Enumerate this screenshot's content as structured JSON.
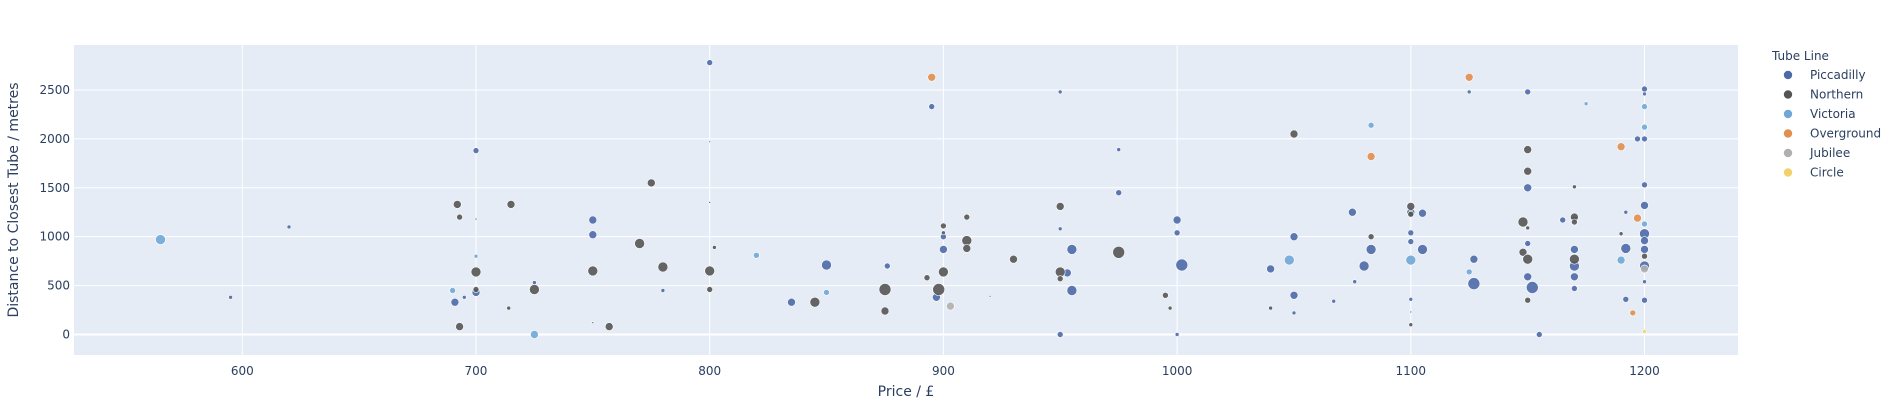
{
  "chart_data": {
    "type": "scatter",
    "xlabel": "Price / £",
    "ylabel": "Distance to Closest Tube / metres",
    "xlim": [
      528,
      1240
    ],
    "ylim": [
      -210,
      2960
    ],
    "xticks": [
      600,
      700,
      800,
      900,
      1000,
      1100,
      1200
    ],
    "yticks": [
      0,
      500,
      1000,
      1500,
      2000,
      2500
    ],
    "grid": true,
    "legend_title": "Tube Line",
    "legend_position": "right",
    "series": [
      {
        "name": "Piccadilly",
        "color": "#4c6aa8",
        "points": [
          [
            595,
            380,
            2
          ],
          [
            620,
            1100,
            2
          ],
          [
            691,
            330,
            4
          ],
          [
            695,
            380,
            2
          ],
          [
            700,
            1880,
            3
          ],
          [
            700,
            430,
            4
          ],
          [
            725,
            530,
            2
          ],
          [
            750,
            1170,
            4
          ],
          [
            750,
            1020,
            4
          ],
          [
            780,
            450,
            2
          ],
          [
            800,
            2780,
            3
          ],
          [
            800,
            1970,
            1
          ],
          [
            835,
            330,
            4
          ],
          [
            850,
            710,
            5
          ],
          [
            876,
            700,
            3
          ],
          [
            895,
            2330,
            3
          ],
          [
            897,
            380,
            4
          ],
          [
            900,
            1000,
            3
          ],
          [
            900,
            870,
            4
          ],
          [
            920,
            390,
            1
          ],
          [
            950,
            2480,
            2
          ],
          [
            950,
            1080,
            2
          ],
          [
            950,
            0,
            3
          ],
          [
            953,
            630,
            4
          ],
          [
            955,
            870,
            5
          ],
          [
            955,
            450,
            5
          ],
          [
            975,
            1890,
            2
          ],
          [
            975,
            1450,
            3
          ],
          [
            1000,
            1170,
            4
          ],
          [
            1000,
            1040,
            3
          ],
          [
            1000,
            0,
            2
          ],
          [
            1002,
            710,
            6
          ],
          [
            1040,
            670,
            4
          ],
          [
            1050,
            1000,
            4
          ],
          [
            1050,
            400,
            4
          ],
          [
            1050,
            220,
            2
          ],
          [
            1067,
            340,
            2
          ],
          [
            1075,
            1250,
            4
          ],
          [
            1076,
            540,
            2
          ],
          [
            1080,
            700,
            5
          ],
          [
            1083,
            870,
            5
          ],
          [
            1100,
            1250,
            4
          ],
          [
            1100,
            1040,
            3
          ],
          [
            1100,
            950,
            3
          ],
          [
            1100,
            360,
            2
          ],
          [
            1100,
            230,
            1
          ],
          [
            1105,
            1240,
            4
          ],
          [
            1105,
            870,
            5
          ],
          [
            1125,
            2480,
            2
          ],
          [
            1127,
            770,
            4
          ],
          [
            1127,
            520,
            6
          ],
          [
            1150,
            2480,
            3
          ],
          [
            1150,
            1500,
            4
          ],
          [
            1150,
            930,
            3
          ],
          [
            1150,
            590,
            4
          ],
          [
            1152,
            480,
            6
          ],
          [
            1155,
            0,
            3
          ],
          [
            1165,
            1170,
            3
          ],
          [
            1170,
            1180,
            3
          ],
          [
            1170,
            870,
            4
          ],
          [
            1170,
            700,
            5
          ],
          [
            1170,
            590,
            4
          ],
          [
            1170,
            470,
            3
          ],
          [
            1192,
            1250,
            2
          ],
          [
            1192,
            880,
            5
          ],
          [
            1192,
            360,
            3
          ],
          [
            1197,
            2000,
            3
          ],
          [
            1200,
            2510,
            3
          ],
          [
            1200,
            2460,
            2
          ],
          [
            1200,
            2000,
            3
          ],
          [
            1200,
            1530,
            3
          ],
          [
            1200,
            1320,
            4
          ],
          [
            1200,
            1030,
            5
          ],
          [
            1200,
            960,
            4
          ],
          [
            1200,
            870,
            4
          ],
          [
            1200,
            700,
            5
          ],
          [
            1200,
            540,
            2
          ],
          [
            1200,
            350,
            3
          ]
        ]
      },
      {
        "name": "Northern",
        "color": "#555555",
        "points": [
          [
            692,
            1330,
            4
          ],
          [
            693,
            1200,
            3
          ],
          [
            693,
            80,
            4
          ],
          [
            700,
            1180,
            1
          ],
          [
            700,
            640,
            5
          ],
          [
            700,
            460,
            3
          ],
          [
            714,
            270,
            2
          ],
          [
            715,
            1330,
            4
          ],
          [
            725,
            460,
            5
          ],
          [
            750,
            650,
            5
          ],
          [
            750,
            120,
            1
          ],
          [
            757,
            80,
            4
          ],
          [
            770,
            930,
            5
          ],
          [
            775,
            1550,
            4
          ],
          [
            780,
            690,
            5
          ],
          [
            800,
            650,
            5
          ],
          [
            800,
            460,
            3
          ],
          [
            800,
            1350,
            1
          ],
          [
            802,
            890,
            2
          ],
          [
            845,
            330,
            5
          ],
          [
            875,
            460,
            6
          ],
          [
            875,
            240,
            4
          ],
          [
            893,
            580,
            3
          ],
          [
            898,
            460,
            6
          ],
          [
            900,
            1110,
            3
          ],
          [
            900,
            640,
            5
          ],
          [
            900,
            1040,
            2
          ],
          [
            910,
            1200,
            3
          ],
          [
            910,
            960,
            5
          ],
          [
            910,
            880,
            4
          ],
          [
            930,
            770,
            4
          ],
          [
            950,
            1310,
            4
          ],
          [
            950,
            640,
            5
          ],
          [
            950,
            570,
            3
          ],
          [
            975,
            840,
            6
          ],
          [
            995,
            400,
            3
          ],
          [
            997,
            270,
            2
          ],
          [
            1040,
            270,
            2
          ],
          [
            1050,
            2050,
            4
          ],
          [
            1083,
            1000,
            3
          ],
          [
            1100,
            1310,
            4
          ],
          [
            1100,
            1230,
            3
          ],
          [
            1100,
            100,
            2
          ],
          [
            1148,
            840,
            4
          ],
          [
            1148,
            1150,
            5
          ],
          [
            1150,
            1890,
            4
          ],
          [
            1150,
            1670,
            4
          ],
          [
            1150,
            770,
            5
          ],
          [
            1150,
            350,
            3
          ],
          [
            1150,
            1090,
            2
          ],
          [
            1170,
            1510,
            2
          ],
          [
            1170,
            1200,
            4
          ],
          [
            1170,
            1150,
            3
          ],
          [
            1170,
            770,
            5
          ],
          [
            1190,
            1030,
            2
          ],
          [
            1200,
            800,
            3
          ]
        ]
      },
      {
        "name": "Victoria",
        "color": "#6fa8d6",
        "points": [
          [
            565,
            970,
            5
          ],
          [
            690,
            450,
            3
          ],
          [
            700,
            800,
            2
          ],
          [
            725,
            0,
            4
          ],
          [
            820,
            810,
            3
          ],
          [
            850,
            430,
            3
          ],
          [
            1048,
            760,
            5
          ],
          [
            1083,
            2140,
            3
          ],
          [
            1100,
            760,
            5
          ],
          [
            1125,
            640,
            3
          ],
          [
            1175,
            2360,
            2
          ],
          [
            1190,
            760,
            4
          ],
          [
            1200,
            2330,
            3
          ],
          [
            1200,
            2120,
            3
          ],
          [
            1200,
            1130,
            3
          ]
        ]
      },
      {
        "name": "Overground",
        "color": "#e08f4f",
        "points": [
          [
            895,
            2630,
            4
          ],
          [
            1083,
            1820,
            4
          ],
          [
            1125,
            2630,
            4
          ],
          [
            1190,
            1920,
            4
          ],
          [
            1195,
            220,
            3
          ],
          [
            1197,
            1190,
            4
          ]
        ]
      },
      {
        "name": "Jubilee",
        "color": "#b0b0b0",
        "points": [
          [
            903,
            290,
            4
          ],
          [
            1200,
            670,
            4
          ]
        ]
      },
      {
        "name": "Circle",
        "color": "#f2d16b",
        "points": [
          [
            1200,
            30,
            2
          ]
        ]
      }
    ]
  }
}
